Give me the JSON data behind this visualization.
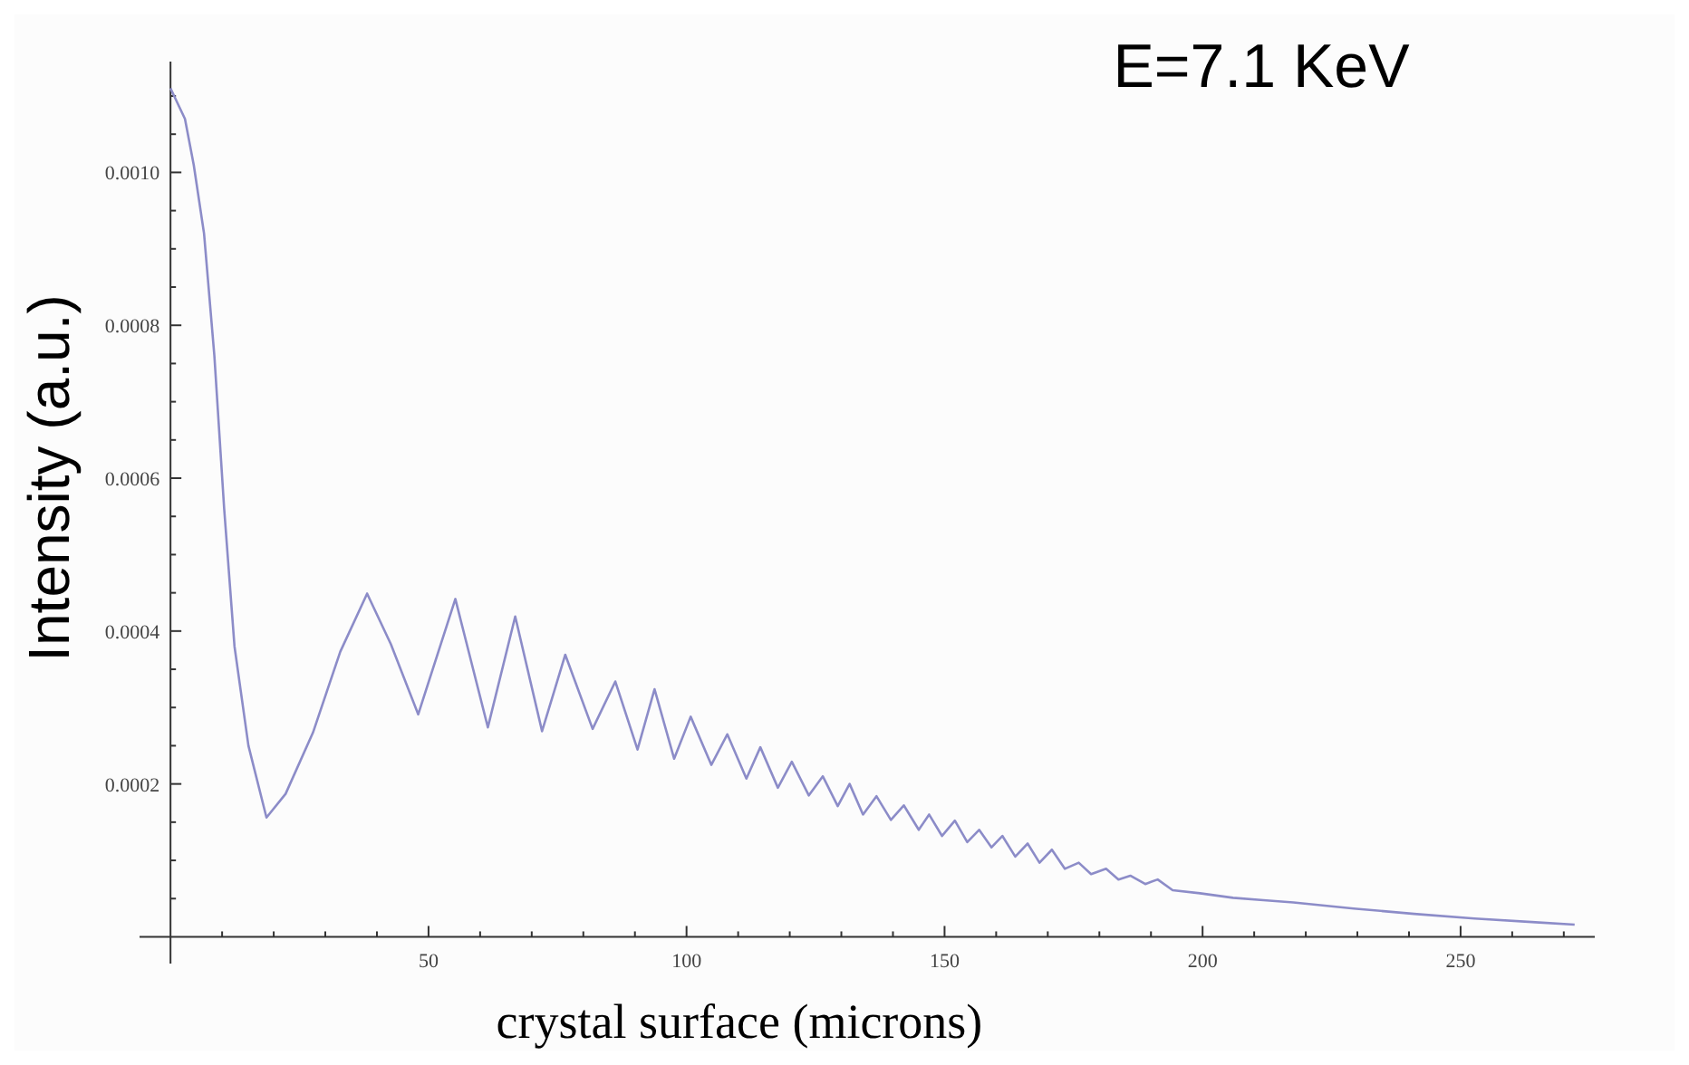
{
  "chart_data": {
    "type": "line",
    "title": "E=7.1 KeV",
    "xlabel": "crystal surface (microns)",
    "ylabel": "Intensity (a.u.)",
    "xlim": [
      -6,
      276
    ],
    "ylim": [
      -3.5e-05,
      0.001145
    ],
    "xticks": [
      {
        "value": 10,
        "label": null
      },
      {
        "value": 20,
        "label": null
      },
      {
        "value": 30,
        "label": null
      },
      {
        "value": 40,
        "label": null
      },
      50,
      {
        "value": 60,
        "label": null
      },
      {
        "value": 70,
        "label": null
      },
      {
        "value": 80,
        "label": null
      },
      {
        "value": 90,
        "label": null
      },
      100,
      {
        "value": 110,
        "label": null
      },
      {
        "value": 120,
        "label": null
      },
      {
        "value": 130,
        "label": null
      },
      {
        "value": 140,
        "label": null
      },
      150,
      {
        "value": 160,
        "label": null
      },
      {
        "value": 170,
        "label": null
      },
      {
        "value": 180,
        "label": null
      },
      {
        "value": 190,
        "label": null
      },
      200,
      {
        "value": 210,
        "label": null
      },
      {
        "value": 220,
        "label": null
      },
      {
        "value": 230,
        "label": null
      },
      {
        "value": 240,
        "label": null
      },
      250,
      {
        "value": 260,
        "label": null
      },
      {
        "value": 270,
        "label": null
      }
    ],
    "yticks": [
      {
        "value": 5e-05,
        "label": null
      },
      {
        "value": 0.0001,
        "label": null
      },
      {
        "value": 0.00015,
        "label": null
      },
      {
        "value": 0.0002,
        "label": "0.0002"
      },
      {
        "value": 0.00025,
        "label": null
      },
      {
        "value": 0.0003,
        "label": null
      },
      {
        "value": 0.00035,
        "label": null
      },
      {
        "value": 0.0004,
        "label": "0.0004"
      },
      {
        "value": 0.00045,
        "label": null
      },
      {
        "value": 0.0005,
        "label": null
      },
      {
        "value": 0.00055,
        "label": null
      },
      {
        "value": 0.0006,
        "label": "0.0006"
      },
      {
        "value": 0.00065,
        "label": null
      },
      {
        "value": 0.0007,
        "label": null
      },
      {
        "value": 0.00075,
        "label": null
      },
      {
        "value": 0.0008,
        "label": "0.0008"
      },
      {
        "value": 0.00085,
        "label": null
      },
      {
        "value": 0.0009,
        "label": null
      },
      {
        "value": 0.00095,
        "label": null
      },
      {
        "value": 0.001,
        "label": "0.0010"
      },
      {
        "value": 0.00105,
        "label": null
      },
      {
        "value": 0.0011,
        "label": null
      }
    ],
    "grid": false,
    "marker": "none",
    "line_style": "solid",
    "series": [
      {
        "color": "#8c8cc8",
        "x": [
          0,
          2.8,
          4.5,
          6.5,
          8.5,
          10.4,
          12.4,
          15.1,
          18.6,
          22.3,
          27.6,
          32.9,
          38.1,
          42.7,
          48,
          55.2,
          61.5,
          66.8,
          72,
          76.5,
          81.8,
          86.2,
          90.5,
          93.8,
          97.6,
          100.8,
          104.8,
          107.9,
          111.6,
          114.3,
          117.7,
          120.4,
          123.7,
          126.4,
          129.3,
          131.6,
          134.2,
          136.8,
          139.6,
          142.1,
          145,
          147,
          149.5,
          152,
          154.4,
          156.7,
          159.1,
          161.2,
          163.7,
          166.1,
          168.4,
          170.8,
          173.3,
          176,
          178.4,
          181.3,
          183.7,
          186,
          188.9,
          191.3,
          194.2,
          199.5,
          205.9,
          211.8,
          217.6,
          229.3,
          241,
          252.7,
          264.5,
          272.1
        ],
        "values": [
          0.00111,
          0.00107,
          0.00101,
          0.00092,
          0.00076,
          0.00056,
          0.00038,
          0.00025,
          0.000156,
          0.000187,
          0.000267,
          0.000373,
          0.000449,
          0.000383,
          0.000291,
          0.000442,
          0.000274,
          0.000419,
          0.000269,
          0.000369,
          0.000272,
          0.000334,
          0.000245,
          0.000324,
          0.000233,
          0.000288,
          0.000225,
          0.000265,
          0.000207,
          0.000248,
          0.000195,
          0.000229,
          0.000185,
          0.00021,
          0.000171,
          0.0002,
          0.00016,
          0.000184,
          0.000153,
          0.000172,
          0.00014,
          0.00016,
          0.000132,
          0.000152,
          0.000124,
          0.00014,
          0.000117,
          0.000132,
          0.000105,
          0.000122,
          9.7e-05,
          0.000114,
          8.9e-05,
          9.7e-05,
          8.2e-05,
          8.9e-05,
          7.5e-05,
          8e-05,
          6.9e-05,
          7.5e-05,
          6.1e-05,
          5.7e-05,
          5.1e-05,
          4.8e-05,
          4.5e-05,
          3.7e-05,
          3e-05,
          2.4e-05,
          1.9e-05,
          1.6e-05
        ]
      }
    ]
  }
}
